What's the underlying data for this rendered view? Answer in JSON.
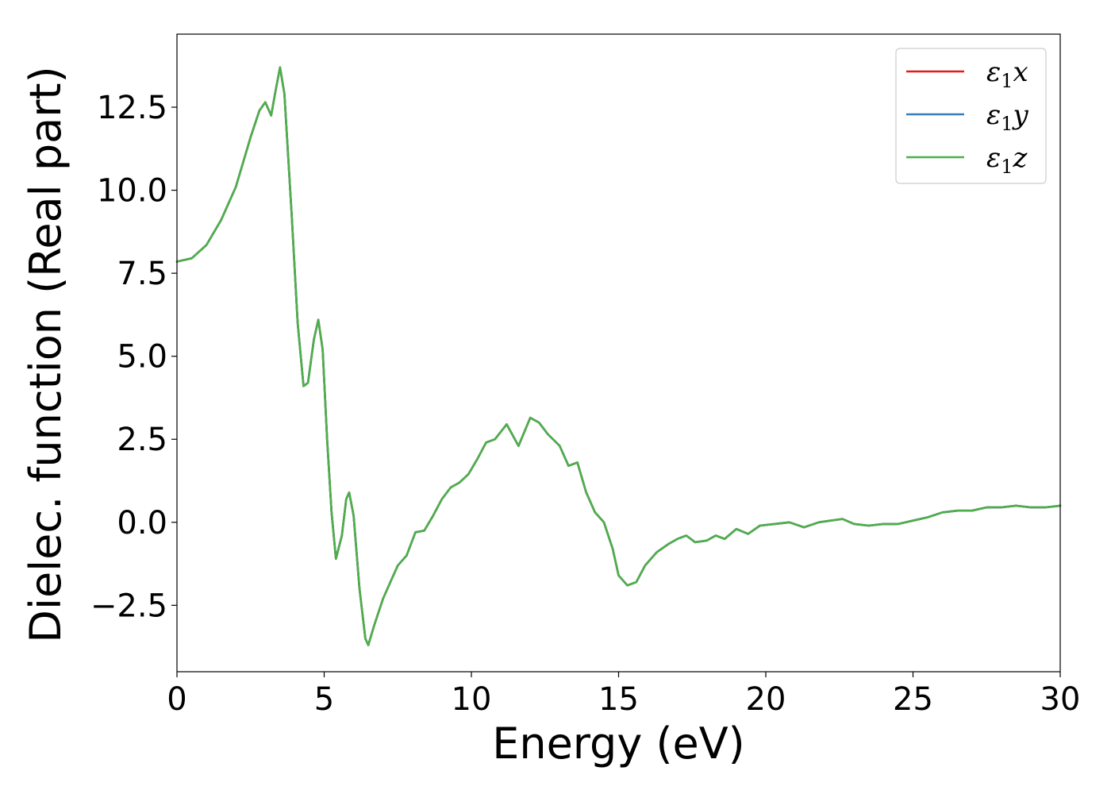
{
  "chart_data": {
    "type": "line",
    "xlabel": "Energy (eV)",
    "ylabel": "Dielec. function (Real part)",
    "xlim": [
      0,
      30
    ],
    "ylim": [
      -4.5,
      14.7
    ],
    "x_ticks": [
      0,
      5,
      10,
      15,
      20,
      25,
      30
    ],
    "x_tick_labels": [
      "0",
      "5",
      "10",
      "15",
      "20",
      "25",
      "30"
    ],
    "y_ticks": [
      -2.5,
      0.0,
      2.5,
      5.0,
      7.5,
      10.0,
      12.5
    ],
    "y_tick_labels": [
      "−2.5",
      "0.0",
      "2.5",
      "5.0",
      "7.5",
      "10.0",
      "12.5"
    ],
    "grid": false,
    "legend_position": "top-right",
    "series": [
      {
        "name": "x",
        "legend_label": {
          "symbol": "ε",
          "subscript": "1",
          "suffix": "x"
        },
        "color": "#e41a1c",
        "points": [
          [
            0,
            7.85
          ],
          [
            0.5,
            7.95
          ],
          [
            1.0,
            8.35
          ],
          [
            1.5,
            9.1
          ],
          [
            2.0,
            10.1
          ],
          [
            2.5,
            11.6
          ],
          [
            2.8,
            12.4
          ],
          [
            3.0,
            12.65
          ],
          [
            3.2,
            12.25
          ],
          [
            3.35,
            13.0
          ],
          [
            3.5,
            13.7
          ],
          [
            3.65,
            12.9
          ],
          [
            3.9,
            9.2
          ],
          [
            4.1,
            6.0
          ],
          [
            4.3,
            4.1
          ],
          [
            4.45,
            4.2
          ],
          [
            4.65,
            5.5
          ],
          [
            4.8,
            6.1
          ],
          [
            4.95,
            5.2
          ],
          [
            5.1,
            2.5
          ],
          [
            5.25,
            0.3
          ],
          [
            5.4,
            -1.1
          ],
          [
            5.6,
            -0.4
          ],
          [
            5.75,
            0.7
          ],
          [
            5.85,
            0.9
          ],
          [
            6.0,
            0.2
          ],
          [
            6.2,
            -2.0
          ],
          [
            6.4,
            -3.5
          ],
          [
            6.5,
            -3.7
          ],
          [
            6.7,
            -3.1
          ],
          [
            7.0,
            -2.3
          ],
          [
            7.3,
            -1.7
          ],
          [
            7.5,
            -1.3
          ],
          [
            7.8,
            -1.0
          ],
          [
            8.1,
            -0.3
          ],
          [
            8.4,
            -0.25
          ],
          [
            8.7,
            0.2
          ],
          [
            9.0,
            0.7
          ],
          [
            9.3,
            1.05
          ],
          [
            9.6,
            1.2
          ],
          [
            9.9,
            1.45
          ],
          [
            10.2,
            1.9
          ],
          [
            10.5,
            2.4
          ],
          [
            10.8,
            2.5
          ],
          [
            11.2,
            2.95
          ],
          [
            11.6,
            2.3
          ],
          [
            12.0,
            3.15
          ],
          [
            12.3,
            3.0
          ],
          [
            12.6,
            2.65
          ],
          [
            13.0,
            2.3
          ],
          [
            13.3,
            1.7
          ],
          [
            13.6,
            1.8
          ],
          [
            13.9,
            0.9
          ],
          [
            14.2,
            0.3
          ],
          [
            14.5,
            0.0
          ],
          [
            14.8,
            -0.8
          ],
          [
            15.0,
            -1.6
          ],
          [
            15.3,
            -1.9
          ],
          [
            15.6,
            -1.8
          ],
          [
            15.9,
            -1.3
          ],
          [
            16.3,
            -0.9
          ],
          [
            16.7,
            -0.65
          ],
          [
            17.0,
            -0.5
          ],
          [
            17.3,
            -0.4
          ],
          [
            17.6,
            -0.6
          ],
          [
            18.0,
            -0.55
          ],
          [
            18.3,
            -0.4
          ],
          [
            18.6,
            -0.5
          ],
          [
            19.0,
            -0.2
          ],
          [
            19.4,
            -0.35
          ],
          [
            19.8,
            -0.1
          ],
          [
            20.3,
            -0.05
          ],
          [
            20.8,
            0.0
          ],
          [
            21.3,
            -0.15
          ],
          [
            21.8,
            0.0
          ],
          [
            22.2,
            0.05
          ],
          [
            22.6,
            0.1
          ],
          [
            23.0,
            -0.05
          ],
          [
            23.5,
            -0.1
          ],
          [
            24.0,
            -0.05
          ],
          [
            24.5,
            -0.05
          ],
          [
            25.0,
            0.05
          ],
          [
            25.5,
            0.15
          ],
          [
            26.0,
            0.3
          ],
          [
            26.5,
            0.35
          ],
          [
            27.0,
            0.35
          ],
          [
            27.5,
            0.45
          ],
          [
            28.0,
            0.45
          ],
          [
            28.5,
            0.5
          ],
          [
            29.0,
            0.45
          ],
          [
            29.5,
            0.45
          ],
          [
            30,
            0.5
          ]
        ]
      },
      {
        "name": "y",
        "legend_label": {
          "symbol": "ε",
          "subscript": "1",
          "suffix": "y"
        },
        "color": "#377eb8",
        "same_as": "x"
      },
      {
        "name": "z",
        "legend_label": {
          "symbol": "ε",
          "subscript": "1",
          "suffix": "z"
        },
        "color": "#4daf4a",
        "same_as": "x"
      }
    ]
  }
}
